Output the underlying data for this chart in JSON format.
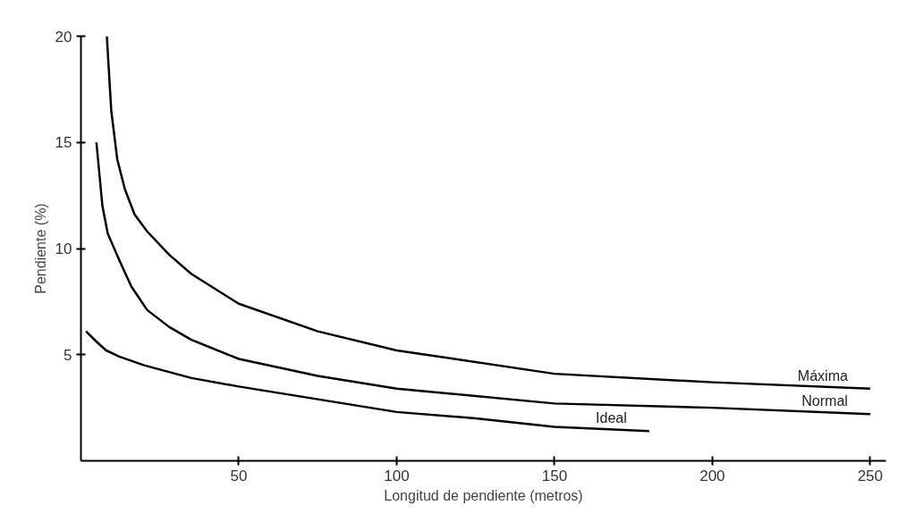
{
  "chart_data": {
    "type": "line",
    "xlabel": "Longitud de pendiente (metros)",
    "ylabel": "Pendiente (%)",
    "xlim": [
      0,
      255
    ],
    "ylim": [
      0,
      20
    ],
    "xticks": [
      50,
      100,
      150,
      200,
      250
    ],
    "yticks": [
      5,
      10,
      15,
      20
    ],
    "grid": false,
    "marker": "none",
    "line_style": "solid",
    "series": [
      {
        "name": "Máxima",
        "color": "#000000",
        "x": [
          8.2,
          9.6,
          11.5,
          13.9,
          17,
          21,
          28,
          35,
          50,
          75,
          100,
          150,
          200,
          250
        ],
        "values": [
          20,
          16.5,
          14.2,
          12.8,
          11.6,
          10.8,
          9.7,
          8.8,
          7.4,
          6.1,
          5.2,
          4.1,
          3.7,
          3.4
        ]
      },
      {
        "name": "Normal",
        "color": "#000000",
        "x": [
          4.9,
          6.8,
          8.5,
          12.3,
          16,
          21,
          28,
          35,
          50,
          75,
          100,
          150,
          200,
          250
        ],
        "values": [
          15,
          12.0,
          10.7,
          9.4,
          8.2,
          7.1,
          6.3,
          5.7,
          4.8,
          4.0,
          3.4,
          2.7,
          2.5,
          2.2
        ]
      },
      {
        "name": "Ideal",
        "color": "#000000",
        "x": [
          1.6,
          5,
          8,
          12.3,
          20,
          35,
          50,
          75,
          100,
          125,
          150,
          180
        ],
        "values": [
          6.1,
          5.6,
          5.2,
          4.9,
          4.5,
          3.9,
          3.5,
          2.9,
          2.3,
          2.0,
          1.6,
          1.4
        ]
      }
    ]
  }
}
